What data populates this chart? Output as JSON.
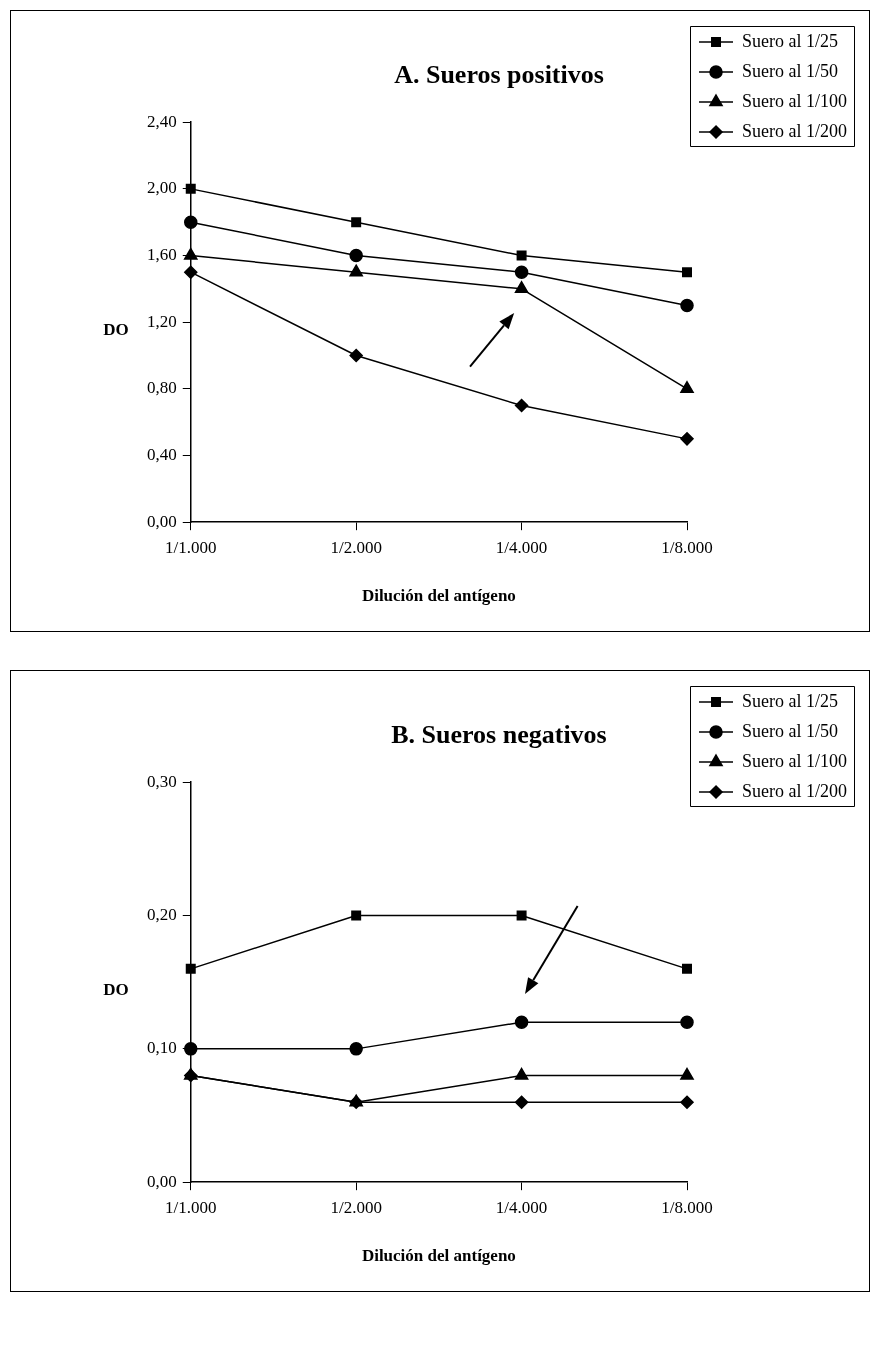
{
  "chart_data": [
    {
      "type": "line",
      "title": "A. Sueros positivos",
      "xlabel": "Dilución del antígeno",
      "ylabel": "DO",
      "categories": [
        "1/1.000",
        "1/2.000",
        "1/4.000",
        "1/8.000"
      ],
      "series": [
        {
          "name": "Suero al 1/25",
          "color": "#000000",
          "marker": "square",
          "values": [
            2.0,
            1.8,
            1.6,
            1.5
          ]
        },
        {
          "name": "Suero al 1/50",
          "color": "#000000",
          "marker": "circle",
          "values": [
            1.8,
            1.6,
            1.5,
            1.3
          ]
        },
        {
          "name": "Suero al 1/100",
          "color": "#000000",
          "marker": "triangle",
          "values": [
            1.6,
            1.5,
            1.4,
            0.8
          ]
        },
        {
          "name": "Suero al 1/200",
          "color": "#000000",
          "marker": "diamond",
          "values": [
            1.5,
            1.0,
            0.7,
            0.5
          ]
        }
      ],
      "ylim": [
        0,
        2.4
      ],
      "yticks": [
        {
          "value": 0,
          "label": "0,00"
        },
        {
          "value": 0.4,
          "label": "0,40"
        },
        {
          "value": 0.8,
          "label": "0,80"
        },
        {
          "value": 1.2,
          "label": "1,20"
        },
        {
          "value": 1.6,
          "label": "1,60"
        },
        {
          "value": 2.0,
          "label": "2,00"
        },
        {
          "value": 2.4,
          "label": "2,40"
        }
      ],
      "grid": false,
      "legend": "top right",
      "line_style": "solid"
    },
    {
      "type": "line",
      "title": "B. Sueros negativos",
      "xlabel": "Dilución del antígeno",
      "ylabel": "DO",
      "categories": [
        "1/1.000",
        "1/2.000",
        "1/4.000",
        "1/8.000"
      ],
      "series": [
        {
          "name": "Suero al 1/25",
          "color": "#000000",
          "marker": "square",
          "values": [
            0.16,
            0.2,
            0.2,
            0.16
          ]
        },
        {
          "name": "Suero al 1/50",
          "color": "#000000",
          "marker": "circle",
          "values": [
            0.1,
            0.1,
            0.12,
            0.12
          ]
        },
        {
          "name": "Suero al 1/100",
          "color": "#000000",
          "marker": "triangle",
          "values": [
            0.08,
            0.06,
            0.08,
            0.08
          ]
        },
        {
          "name": "Suero al 1/200",
          "color": "#000000",
          "marker": "diamond",
          "values": [
            0.08,
            0.06,
            0.06,
            0.06
          ]
        }
      ],
      "ylim": [
        0,
        0.3
      ],
      "yticks": [
        {
          "value": 0,
          "label": "0,00"
        },
        {
          "value": 0.1,
          "label": "0,10"
        },
        {
          "value": 0.2,
          "label": "0,20"
        },
        {
          "value": 0.3,
          "label": "0,30"
        }
      ],
      "grid": false,
      "legend": "top right",
      "line_style": "solid"
    }
  ]
}
